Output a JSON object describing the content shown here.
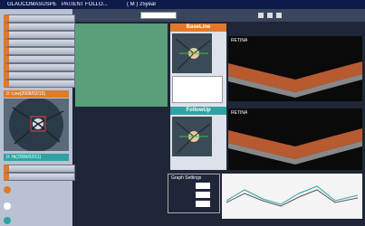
{
  "header": {
    "title": "GLAUCOMASUSPE",
    "patient": "PATIENT FOLLO...",
    "info": "( M ) 25year"
  },
  "sidebar": {
    "dates": [
      "0: Low(2008/02/15)",
      "0: Hi(2008/02/11)"
    ]
  },
  "panels": {
    "baseline": {
      "title": "BaseLine",
      "scan_label": "RETINA"
    },
    "followup": {
      "title": "FollowUp",
      "scan_label": "RETINA"
    }
  },
  "graph": {
    "title": "Graph Settings"
  }
}
